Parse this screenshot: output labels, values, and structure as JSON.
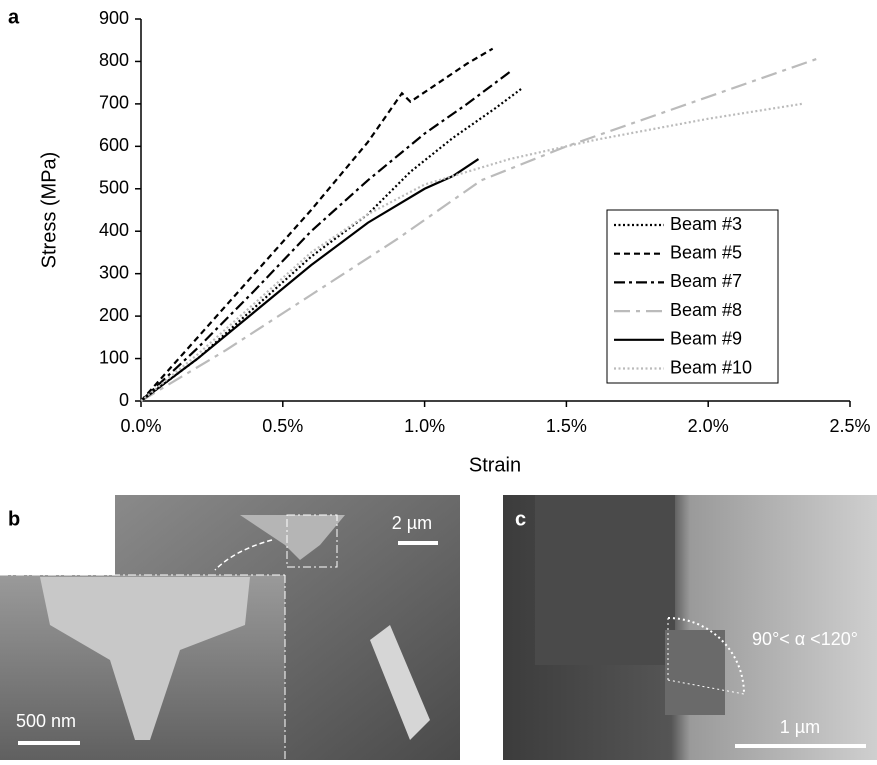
{
  "chart_data": {
    "type": "line",
    "panel_label": "a",
    "x_label": "Strain",
    "y_label": "Stress (MPa)",
    "xlim": [
      0,
      2.5
    ],
    "ylim": [
      0,
      900
    ],
    "xticks": [
      {
        "value": 0,
        "label": "0.0%"
      },
      {
        "value": 0.5,
        "label": "0.5%"
      },
      {
        "value": 1,
        "label": "1.0%"
      },
      {
        "value": 1.5,
        "label": "1.5%"
      },
      {
        "value": 2,
        "label": "2.0%"
      },
      {
        "value": 2.5,
        "label": "2.5%"
      }
    ],
    "yticks": [
      0,
      100,
      200,
      300,
      400,
      500,
      600,
      700,
      800,
      900
    ],
    "legend": "lower right",
    "series": [
      {
        "name": "Beam #3",
        "color": "#000000",
        "dash": "dotted",
        "x": [
          0,
          0.2,
          0.4,
          0.6,
          0.8,
          0.95,
          1.1,
          1.25,
          1.34
        ],
        "values": [
          0,
          100,
          220,
          340,
          440,
          540,
          620,
          690,
          735
        ]
      },
      {
        "name": "Beam #5",
        "color": "#000000",
        "dash": "dashed",
        "x": [
          0,
          0.2,
          0.4,
          0.6,
          0.8,
          0.92,
          0.95,
          1.05,
          1.15,
          1.24
        ],
        "values": [
          0,
          150,
          300,
          450,
          610,
          725,
          705,
          750,
          795,
          830
        ]
      },
      {
        "name": "Beam #7",
        "color": "#000000",
        "dash": "dashdot",
        "x": [
          0,
          0.2,
          0.4,
          0.6,
          0.8,
          1.0,
          1.15,
          1.3
        ],
        "values": [
          0,
          125,
          260,
          400,
          520,
          630,
          700,
          775
        ]
      },
      {
        "name": "Beam #8",
        "color": "#bbbbbb",
        "dash": "longdashdot",
        "x": [
          0,
          0.3,
          0.6,
          0.9,
          1.2,
          1.5,
          1.8,
          2.1,
          2.4
        ],
        "values": [
          0,
          120,
          250,
          380,
          520,
          600,
          670,
          740,
          810
        ]
      },
      {
        "name": "Beam #9",
        "color": "#000000",
        "dash": "solid",
        "x": [
          0,
          0.2,
          0.4,
          0.6,
          0.8,
          1.0,
          1.1,
          1.19
        ],
        "values": [
          0,
          100,
          210,
          320,
          420,
          500,
          530,
          570
        ]
      },
      {
        "name": "Beam #10",
        "color": "#bbbbbb",
        "dash": "dotted",
        "x": [
          0,
          0.2,
          0.4,
          0.6,
          0.8,
          1.0,
          1.3,
          1.6,
          2.0,
          2.33
        ],
        "values": [
          0,
          110,
          230,
          350,
          440,
          510,
          570,
          615,
          665,
          700
        ]
      }
    ]
  },
  "panels": {
    "b": {
      "label": "b",
      "scale_main": "2 µm",
      "scale_inset": "500 nm"
    },
    "c": {
      "label": "c",
      "scale": "1 µm",
      "angle": "90°< α <120°"
    }
  }
}
